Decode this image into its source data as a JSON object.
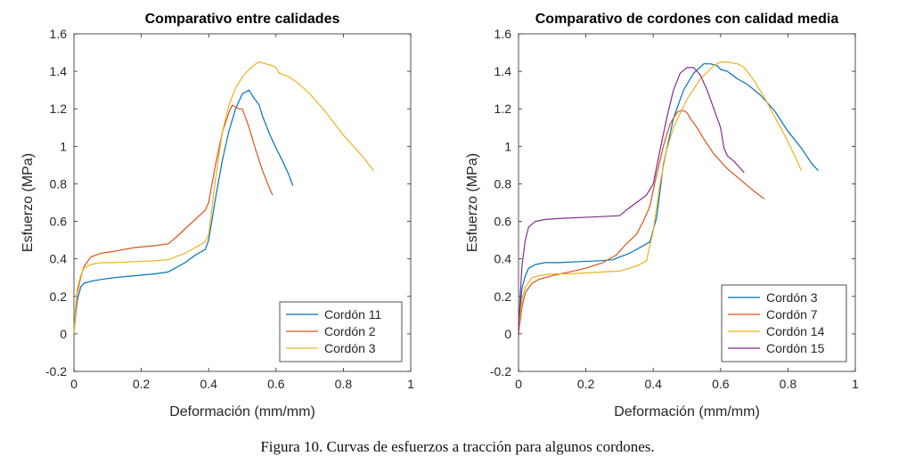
{
  "figure": {
    "caption": "Figura 10. Curvas de esfuerzos a tracción para algunos cordones."
  },
  "chart_data": [
    {
      "type": "line",
      "title": "Comparativo entre calidades",
      "xlabel": "Deformación (mm/mm)",
      "ylabel": "Esfuerzo (MPa)",
      "xlim": [
        0,
        1
      ],
      "ylim": [
        -0.2,
        1.6
      ],
      "x_ticks": [
        0,
        0.2,
        0.4,
        0.6,
        0.8,
        1
      ],
      "y_ticks": [
        -0.2,
        0,
        0.2,
        0.4,
        0.6,
        0.8,
        1,
        1.2,
        1.4,
        1.6
      ],
      "x_tick_labels": [
        "0",
        "0.2",
        "0.4",
        "0.6",
        "0.8",
        "1"
      ],
      "y_tick_labels": [
        "-0.2",
        "0",
        "0.2",
        "0.4",
        "0.6",
        "0.8",
        "1",
        "1.2",
        "1.4",
        "1.6"
      ],
      "grid": false,
      "legend_position": "bottom-right",
      "series": [
        {
          "name": "Cordón 11",
          "color": "#0072BD",
          "x": [
            0,
            0.005,
            0.01,
            0.02,
            0.03,
            0.05,
            0.08,
            0.12,
            0.18,
            0.24,
            0.28,
            0.3,
            0.33,
            0.36,
            0.39,
            0.4,
            0.42,
            0.44,
            0.46,
            0.48,
            0.5,
            0.52,
            0.53,
            0.55,
            0.56,
            0.58,
            0.6,
            0.62,
            0.64,
            0.65
          ],
          "y": [
            0,
            0.1,
            0.18,
            0.25,
            0.27,
            0.28,
            0.29,
            0.3,
            0.31,
            0.32,
            0.33,
            0.35,
            0.38,
            0.42,
            0.45,
            0.5,
            0.72,
            0.92,
            1.08,
            1.2,
            1.28,
            1.3,
            1.27,
            1.22,
            1.16,
            1.07,
            0.99,
            0.92,
            0.84,
            0.79
          ]
        },
        {
          "name": "Cordón 2",
          "color": "#D95319",
          "x": [
            0,
            0.005,
            0.01,
            0.02,
            0.03,
            0.05,
            0.08,
            0.12,
            0.18,
            0.24,
            0.28,
            0.3,
            0.33,
            0.36,
            0.39,
            0.4,
            0.42,
            0.44,
            0.46,
            0.47,
            0.48,
            0.49,
            0.5,
            0.52,
            0.54,
            0.56,
            0.58,
            0.59
          ],
          "y": [
            0,
            0.12,
            0.22,
            0.3,
            0.36,
            0.41,
            0.43,
            0.44,
            0.46,
            0.47,
            0.48,
            0.51,
            0.56,
            0.61,
            0.66,
            0.7,
            0.9,
            1.07,
            1.18,
            1.22,
            1.21,
            1.2,
            1.2,
            1.1,
            0.98,
            0.87,
            0.78,
            0.74
          ]
        },
        {
          "name": "Cordón 3",
          "color": "#EDB120",
          "x": [
            0,
            0.005,
            0.01,
            0.02,
            0.03,
            0.05,
            0.08,
            0.12,
            0.18,
            0.24,
            0.28,
            0.3,
            0.33,
            0.36,
            0.39,
            0.4,
            0.42,
            0.44,
            0.46,
            0.48,
            0.5,
            0.52,
            0.54,
            0.55,
            0.57,
            0.59,
            0.6,
            0.61,
            0.64,
            0.67,
            0.7,
            0.74,
            0.8,
            0.86,
            0.89
          ],
          "y": [
            0,
            0.14,
            0.24,
            0.31,
            0.35,
            0.37,
            0.38,
            0.38,
            0.385,
            0.39,
            0.395,
            0.41,
            0.43,
            0.46,
            0.49,
            0.53,
            0.82,
            1.07,
            1.22,
            1.31,
            1.37,
            1.41,
            1.44,
            1.45,
            1.44,
            1.43,
            1.42,
            1.39,
            1.37,
            1.33,
            1.28,
            1.2,
            1.06,
            0.94,
            0.87
          ]
        }
      ]
    },
    {
      "type": "line",
      "title": "Comparativo de cordones con calidad media",
      "xlabel": "Deformación (mm/mm)",
      "ylabel": "Esfuerzo (MPa)",
      "xlim": [
        0,
        1
      ],
      "ylim": [
        -0.2,
        1.6
      ],
      "x_ticks": [
        0,
        0.2,
        0.4,
        0.6,
        0.8,
        1
      ],
      "y_ticks": [
        -0.2,
        0,
        0.2,
        0.4,
        0.6,
        0.8,
        1,
        1.2,
        1.4,
        1.6
      ],
      "x_tick_labels": [
        "0",
        "0.2",
        "0.4",
        "0.6",
        "0.8",
        "1"
      ],
      "y_tick_labels": [
        "-0.2",
        "0",
        "0.2",
        "0.4",
        "0.6",
        "0.8",
        "1",
        "1.2",
        "1.4",
        "1.6"
      ],
      "grid": false,
      "legend_position": "bottom-right",
      "series": [
        {
          "name": "Cordón 3",
          "color": "#0072BD",
          "x": [
            0,
            0.005,
            0.01,
            0.02,
            0.03,
            0.05,
            0.08,
            0.12,
            0.18,
            0.24,
            0.28,
            0.3,
            0.33,
            0.36,
            0.39,
            0.41,
            0.43,
            0.46,
            0.49,
            0.52,
            0.55,
            0.57,
            0.59,
            0.6,
            0.62,
            0.65,
            0.68,
            0.72,
            0.76,
            0.8,
            0.84,
            0.87,
            0.89
          ],
          "y": [
            0,
            0.14,
            0.24,
            0.31,
            0.35,
            0.37,
            0.38,
            0.38,
            0.385,
            0.39,
            0.395,
            0.41,
            0.43,
            0.46,
            0.49,
            0.62,
            0.9,
            1.15,
            1.3,
            1.39,
            1.44,
            1.44,
            1.43,
            1.41,
            1.4,
            1.36,
            1.33,
            1.27,
            1.19,
            1.08,
            0.99,
            0.91,
            0.87
          ]
        },
        {
          "name": "Cordón 7",
          "color": "#D95319",
          "x": [
            0,
            0.005,
            0.01,
            0.02,
            0.04,
            0.06,
            0.1,
            0.15,
            0.2,
            0.25,
            0.29,
            0.32,
            0.35,
            0.37,
            0.39,
            0.41,
            0.43,
            0.45,
            0.47,
            0.48,
            0.49,
            0.5,
            0.51,
            0.53,
            0.55,
            0.58,
            0.62,
            0.66,
            0.7,
            0.73
          ],
          "y": [
            0,
            0.07,
            0.14,
            0.22,
            0.27,
            0.29,
            0.31,
            0.33,
            0.35,
            0.38,
            0.42,
            0.48,
            0.53,
            0.6,
            0.68,
            0.85,
            1.0,
            1.12,
            1.18,
            1.19,
            1.19,
            1.18,
            1.15,
            1.1,
            1.04,
            0.96,
            0.88,
            0.82,
            0.76,
            0.72
          ]
        },
        {
          "name": "Cordón 14",
          "color": "#EDB120",
          "x": [
            0,
            0.005,
            0.01,
            0.02,
            0.04,
            0.06,
            0.1,
            0.15,
            0.2,
            0.25,
            0.3,
            0.33,
            0.36,
            0.38,
            0.4,
            0.42,
            0.44,
            0.46,
            0.5,
            0.54,
            0.58,
            0.6,
            0.62,
            0.65,
            0.67,
            0.7,
            0.73,
            0.76,
            0.79,
            0.82,
            0.84
          ],
          "y": [
            0,
            0.1,
            0.18,
            0.25,
            0.3,
            0.31,
            0.32,
            0.32,
            0.325,
            0.33,
            0.335,
            0.35,
            0.37,
            0.39,
            0.55,
            0.8,
            0.98,
            1.1,
            1.25,
            1.36,
            1.43,
            1.45,
            1.45,
            1.44,
            1.42,
            1.35,
            1.26,
            1.16,
            1.06,
            0.95,
            0.87
          ]
        },
        {
          "name": "Cordón 15",
          "color": "#7E2F8E",
          "x": [
            0,
            0.005,
            0.01,
            0.02,
            0.03,
            0.05,
            0.08,
            0.12,
            0.18,
            0.24,
            0.3,
            0.32,
            0.35,
            0.38,
            0.4,
            0.42,
            0.44,
            0.46,
            0.48,
            0.5,
            0.52,
            0.54,
            0.56,
            0.58,
            0.6,
            0.61,
            0.62,
            0.64,
            0.66,
            0.67
          ],
          "y": [
            0,
            0.2,
            0.36,
            0.5,
            0.57,
            0.6,
            0.61,
            0.615,
            0.62,
            0.625,
            0.63,
            0.66,
            0.7,
            0.74,
            0.8,
            0.98,
            1.15,
            1.3,
            1.39,
            1.42,
            1.42,
            1.38,
            1.3,
            1.2,
            1.1,
            0.99,
            0.95,
            0.92,
            0.88,
            0.86
          ]
        }
      ]
    }
  ]
}
